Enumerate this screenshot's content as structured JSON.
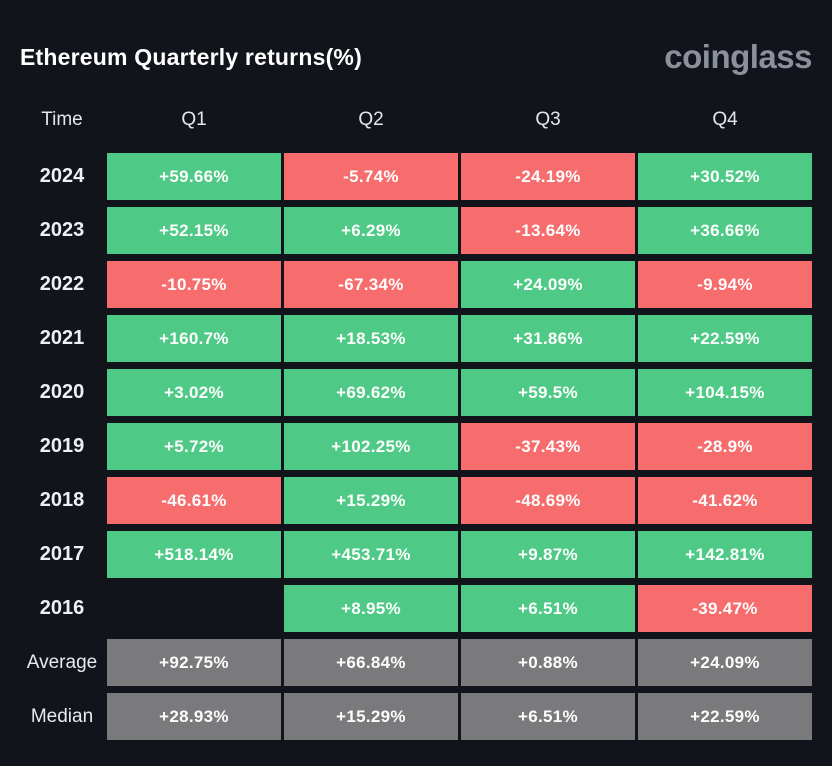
{
  "header": {
    "title": "Ethereum Quarterly returns(%)",
    "logo_text": "coinglass"
  },
  "colors": {
    "positive": "#4fca86",
    "negative": "#f76d6e",
    "summary": "#7a7a7d",
    "background": "#12141c"
  },
  "table": {
    "columns": [
      "Time",
      "Q1",
      "Q2",
      "Q3",
      "Q4"
    ],
    "rows": [
      {
        "label": "2024",
        "kind": "year",
        "cells": [
          {
            "text": "+59.66%",
            "state": "pos"
          },
          {
            "text": "-5.74%",
            "state": "neg"
          },
          {
            "text": "-24.19%",
            "state": "neg"
          },
          {
            "text": "+30.52%",
            "state": "pos"
          }
        ]
      },
      {
        "label": "2023",
        "kind": "year",
        "cells": [
          {
            "text": "+52.15%",
            "state": "pos"
          },
          {
            "text": "+6.29%",
            "state": "pos"
          },
          {
            "text": "-13.64%",
            "state": "neg"
          },
          {
            "text": "+36.66%",
            "state": "pos"
          }
        ]
      },
      {
        "label": "2022",
        "kind": "year",
        "cells": [
          {
            "text": "-10.75%",
            "state": "neg"
          },
          {
            "text": "-67.34%",
            "state": "neg"
          },
          {
            "text": "+24.09%",
            "state": "pos"
          },
          {
            "text": "-9.94%",
            "state": "neg"
          }
        ]
      },
      {
        "label": "2021",
        "kind": "year",
        "cells": [
          {
            "text": "+160.7%",
            "state": "pos"
          },
          {
            "text": "+18.53%",
            "state": "pos"
          },
          {
            "text": "+31.86%",
            "state": "pos"
          },
          {
            "text": "+22.59%",
            "state": "pos"
          }
        ]
      },
      {
        "label": "2020",
        "kind": "year",
        "cells": [
          {
            "text": "+3.02%",
            "state": "pos"
          },
          {
            "text": "+69.62%",
            "state": "pos"
          },
          {
            "text": "+59.5%",
            "state": "pos"
          },
          {
            "text": "+104.15%",
            "state": "pos"
          }
        ]
      },
      {
        "label": "2019",
        "kind": "year",
        "cells": [
          {
            "text": "+5.72%",
            "state": "pos"
          },
          {
            "text": "+102.25%",
            "state": "pos"
          },
          {
            "text": "-37.43%",
            "state": "neg"
          },
          {
            "text": "-28.9%",
            "state": "neg"
          }
        ]
      },
      {
        "label": "2018",
        "kind": "year",
        "cells": [
          {
            "text": "-46.61%",
            "state": "neg"
          },
          {
            "text": "+15.29%",
            "state": "pos"
          },
          {
            "text": "-48.69%",
            "state": "neg"
          },
          {
            "text": "-41.62%",
            "state": "neg"
          }
        ]
      },
      {
        "label": "2017",
        "kind": "year",
        "cells": [
          {
            "text": "+518.14%",
            "state": "pos"
          },
          {
            "text": "+453.71%",
            "state": "pos"
          },
          {
            "text": "+9.87%",
            "state": "pos"
          },
          {
            "text": "+142.81%",
            "state": "pos"
          }
        ]
      },
      {
        "label": "2016",
        "kind": "year",
        "cells": [
          {
            "text": "",
            "state": "empty"
          },
          {
            "text": "+8.95%",
            "state": "pos"
          },
          {
            "text": "+6.51%",
            "state": "pos"
          },
          {
            "text": "-39.47%",
            "state": "neg"
          }
        ]
      },
      {
        "label": "Average",
        "kind": "summary",
        "cells": [
          {
            "text": "+92.75%",
            "state": "sum"
          },
          {
            "text": "+66.84%",
            "state": "sum"
          },
          {
            "text": "+0.88%",
            "state": "sum"
          },
          {
            "text": "+24.09%",
            "state": "sum"
          }
        ]
      },
      {
        "label": "Median",
        "kind": "summary",
        "cells": [
          {
            "text": "+28.93%",
            "state": "sum"
          },
          {
            "text": "+15.29%",
            "state": "sum"
          },
          {
            "text": "+6.51%",
            "state": "sum"
          },
          {
            "text": "+22.59%",
            "state": "sum"
          }
        ]
      }
    ]
  },
  "chart_data": {
    "type": "table",
    "title": "Ethereum Quarterly returns(%)",
    "columns": [
      "Time",
      "Q1",
      "Q2",
      "Q3",
      "Q4"
    ],
    "rows": [
      {
        "time": "2024",
        "q1": 59.66,
        "q2": -5.74,
        "q3": -24.19,
        "q4": 30.52
      },
      {
        "time": "2023",
        "q1": 52.15,
        "q2": 6.29,
        "q3": -13.64,
        "q4": 36.66
      },
      {
        "time": "2022",
        "q1": -10.75,
        "q2": -67.34,
        "q3": 24.09,
        "q4": -9.94
      },
      {
        "time": "2021",
        "q1": 160.7,
        "q2": 18.53,
        "q3": 31.86,
        "q4": 22.59
      },
      {
        "time": "2020",
        "q1": 3.02,
        "q2": 69.62,
        "q3": 59.5,
        "q4": 104.15
      },
      {
        "time": "2019",
        "q1": 5.72,
        "q2": 102.25,
        "q3": -37.43,
        "q4": -28.9
      },
      {
        "time": "2018",
        "q1": -46.61,
        "q2": 15.29,
        "q3": -48.69,
        "q4": -41.62
      },
      {
        "time": "2017",
        "q1": 518.14,
        "q2": 453.71,
        "q3": 9.87,
        "q4": 142.81
      },
      {
        "time": "2016",
        "q1": null,
        "q2": 8.95,
        "q3": 6.51,
        "q4": -39.47
      },
      {
        "time": "Average",
        "q1": 92.75,
        "q2": 66.84,
        "q3": 0.88,
        "q4": 24.09
      },
      {
        "time": "Median",
        "q1": 28.93,
        "q2": 15.29,
        "q3": 6.51,
        "q4": 22.59
      }
    ],
    "layout_hints": {
      "cell_color_positive": "green",
      "cell_color_negative": "red",
      "cell_color_summary_rows": "gray",
      "empty_cells": [
        "2016.q1"
      ]
    }
  }
}
